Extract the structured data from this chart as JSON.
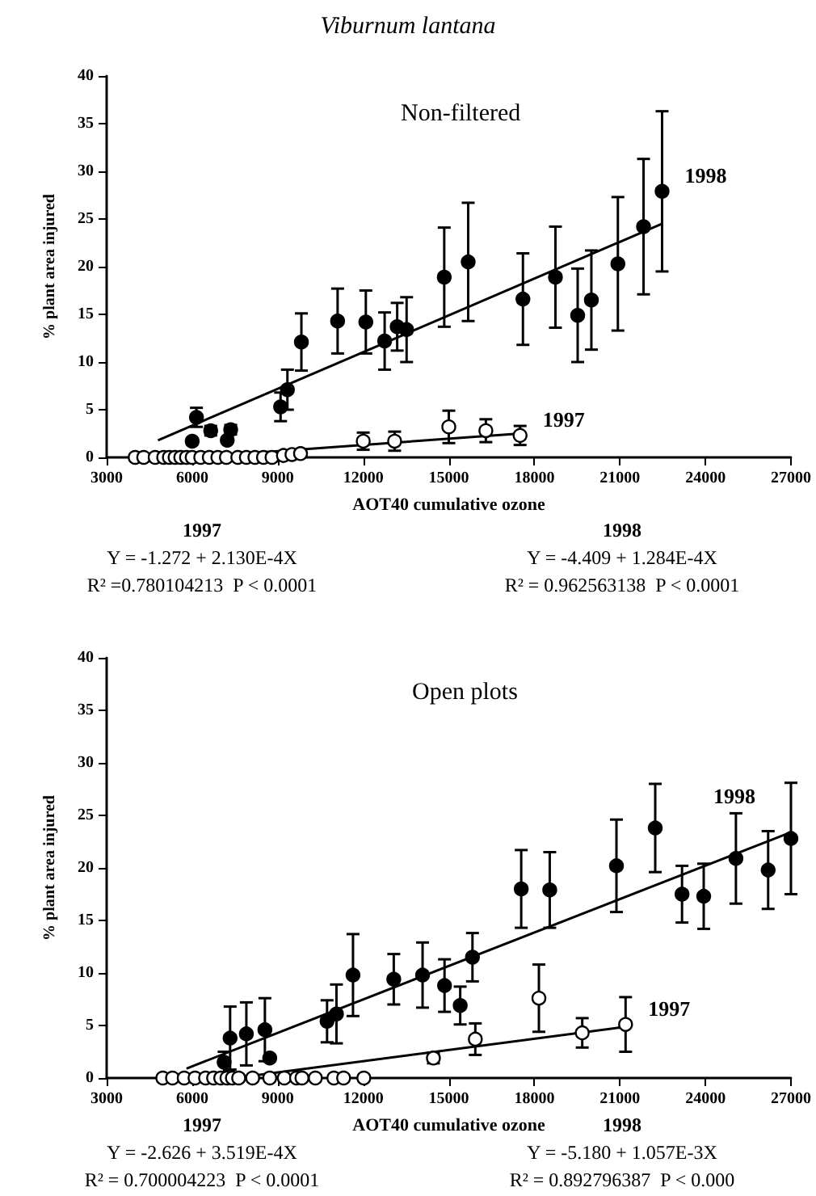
{
  "chart_data": [
    {
      "type": "scatter",
      "title": "Viburnum lantana",
      "subtitle": "Non-filtered",
      "xlabel": "AOT40 cumulative ozone",
      "ylabel": "% plant area injured",
      "annotations": [
        "1997",
        "Y = -1.272 + 2.130E-4X",
        "R² =0.780104213  P < 0.0001",
        "1998",
        "Y = -4.409 + 1.284E-4X",
        "R² = 0.962563138  P < 0.0001"
      ],
      "xlim": [
        3000,
        27000
      ],
      "xticks": [
        3000,
        6000,
        9000,
        12000,
        15000,
        18000,
        21000,
        24000,
        27000
      ],
      "ylim": [
        0,
        40
      ],
      "yticks": [
        0,
        5,
        10,
        15,
        20,
        25,
        30,
        35,
        40
      ],
      "marker": "circle",
      "series": [
        {
          "name": "1998",
          "color": "#000000",
          "x": [
            6000,
            6150,
            6650,
            7230,
            7350,
            9100,
            9340,
            9830,
            11100,
            12090,
            12750,
            13190,
            13520,
            14840,
            15680,
            17600,
            18740,
            19520,
            20000,
            20930,
            21830,
            22480
          ],
          "values": [
            1.7,
            4.2,
            2.8,
            1.8,
            2.9,
            5.3,
            7.1,
            12.1,
            14.3,
            14.2,
            12.2,
            13.7,
            13.4,
            18.9,
            20.5,
            16.6,
            18.9,
            14.9,
            16.5,
            20.3,
            24.2,
            27.9
          ],
          "errors": [
            null,
            1,
            0.5,
            null,
            0.5,
            1.5,
            2.1,
            3,
            3.4,
            3.3,
            3,
            2.5,
            3.4,
            5.2,
            6.2,
            4.8,
            5.3,
            4.9,
            5.2,
            7,
            7.1,
            8.4
          ]
        },
        {
          "name": "1997",
          "color": "#ffffff",
          "x": [
            4000,
            4300,
            4700,
            5000,
            5200,
            5400,
            5600,
            5800,
            6000,
            6300,
            6600,
            6900,
            7200,
            7600,
            7900,
            8200,
            8500,
            8800,
            9200,
            9500,
            9800,
            12000,
            13100,
            15000,
            16300,
            17500
          ],
          "values": [
            0,
            0,
            0,
            0,
            0,
            0,
            0,
            0,
            0,
            0,
            0,
            0,
            0,
            0,
            0,
            0,
            0,
            0,
            0.2,
            0.3,
            0.4,
            1.7,
            1.7,
            3.2,
            2.8,
            2.3
          ],
          "errors": [
            null,
            null,
            null,
            null,
            null,
            null,
            null,
            null,
            null,
            null,
            null,
            null,
            null,
            null,
            null,
            null,
            null,
            null,
            null,
            null,
            null,
            0.9,
            1,
            1.7,
            1.2,
            1
          ]
        },
        {
          "type": "line",
          "color": "#000000",
          "marker": "none",
          "x": [
            4800,
            22480
          ],
          "values": [
            1.8,
            24.5
          ]
        },
        {
          "type": "line",
          "color": "#000000",
          "marker": "none",
          "x": [
            6000,
            17500
          ],
          "values": [
            0,
            2.5
          ]
        }
      ]
    },
    {
      "type": "scatter",
      "title": "Open plots",
      "xlabel": "AOT40 cumulative ozone",
      "ylabel": "% plant area injured",
      "annotations": [
        "1997",
        "Y = -2.626 + 3.519E-4X",
        "R² = 0.700004223  P < 0.0001",
        "1998",
        "Y = -5.180 + 1.057E-3X",
        "R² = 0.892796387  P < 0.000"
      ],
      "xlim": [
        3000,
        27000
      ],
      "xticks": [
        3000,
        6000,
        9000,
        12000,
        15000,
        18000,
        21000,
        24000,
        27000
      ],
      "ylim": [
        0,
        40
      ],
      "yticks": [
        0,
        5,
        10,
        15,
        20,
        25,
        30,
        35,
        40
      ],
      "marker": "circle",
      "series": [
        {
          "name": "1998",
          "color": "#000000",
          "x": [
            7120,
            7330,
            7900,
            8550,
            8720,
            10730,
            11060,
            11640,
            13070,
            14080,
            14850,
            15400,
            15830,
            17540,
            18540,
            20880,
            22240,
            23180,
            23940,
            25070,
            26200,
            27000
          ],
          "values": [
            1.5,
            3.8,
            4.2,
            4.6,
            1.9,
            5.4,
            6.1,
            9.8,
            9.4,
            9.8,
            8.8,
            6.9,
            11.5,
            18,
            17.9,
            20.2,
            23.8,
            17.5,
            17.3,
            20.9,
            19.8,
            22.8
          ],
          "errors": [
            1,
            3,
            3,
            3,
            null,
            2,
            2.8,
            3.9,
            2.4,
            3.1,
            2.5,
            1.8,
            2.3,
            3.7,
            3.6,
            4.4,
            4.2,
            2.7,
            3.1,
            4.3,
            3.7,
            5.3
          ]
        },
        {
          "name": "1997",
          "color": "#ffffff",
          "x": [
            4970,
            5310,
            5720,
            6100,
            6470,
            6750,
            7000,
            7220,
            7410,
            7630,
            8120,
            8720,
            9230,
            9660,
            9850,
            10320,
            10970,
            11310,
            12020,
            14460,
            15930,
            18160,
            19680,
            21200
          ],
          "values": [
            0,
            0,
            0,
            0,
            0,
            0,
            0,
            0,
            0,
            0,
            0,
            0,
            0,
            0,
            0,
            0,
            0,
            0,
            0,
            1.9,
            3.7,
            7.6,
            4.3,
            5.1
          ],
          "errors": [
            null,
            null,
            null,
            null,
            null,
            null,
            null,
            null,
            null,
            null,
            null,
            null,
            null,
            null,
            null,
            null,
            null,
            null,
            null,
            0.5,
            1.5,
            3.2,
            1.4,
            2.6
          ]
        },
        {
          "type": "line",
          "color": "#000000",
          "marker": "none",
          "x": [
            5800,
            27000
          ],
          "values": [
            0.9,
            23.4
          ]
        },
        {
          "type": "line",
          "color": "#000000",
          "marker": "none",
          "x": [
            7500,
            21000
          ],
          "values": [
            0,
            4.8
          ]
        }
      ]
    }
  ]
}
